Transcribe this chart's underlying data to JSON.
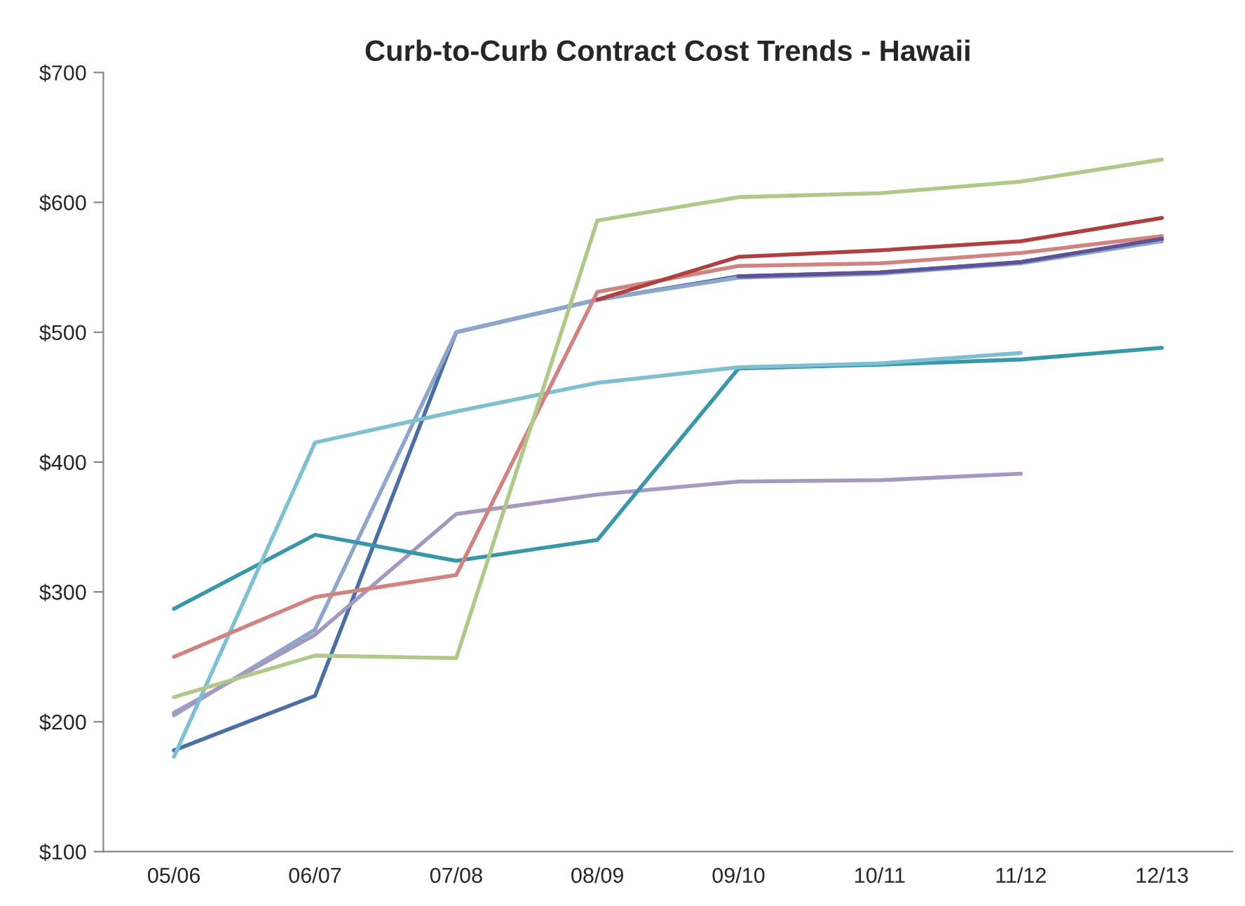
{
  "chart_data": {
    "type": "line",
    "title": "Curb-to-Curb Contract Cost Trends - Hawaii",
    "categories": [
      "05/06",
      "06/07",
      "07/08",
      "08/09",
      "09/10",
      "10/11",
      "11/12",
      "12/13"
    ],
    "series": [
      {
        "color": "#4a6fa5",
        "values": [
          178,
          220,
          500,
          525,
          543,
          546,
          554,
          571
        ]
      },
      {
        "color": "#8ea5cc",
        "values": [
          205,
          271,
          500,
          525,
          542,
          545,
          553,
          570
        ]
      },
      {
        "color": "#a699c0",
        "values": [
          207,
          267,
          360,
          375,
          385,
          386,
          391,
          null
        ]
      },
      {
        "color": "#3a97aa",
        "values": [
          287,
          344,
          324,
          340,
          472,
          475,
          479,
          488
        ]
      },
      {
        "color": "#7fbfd2",
        "values": [
          173,
          415,
          439,
          461,
          473,
          476,
          484,
          null
        ]
      },
      {
        "color": "#d0837f",
        "values": [
          250,
          296,
          313,
          531,
          551,
          553,
          561,
          574
        ]
      },
      {
        "color": "#b0c98a",
        "values": [
          219,
          251,
          249,
          586,
          604,
          607,
          616,
          633
        ]
      },
      {
        "color": "#b04040",
        "values": [
          null,
          null,
          null,
          525,
          558,
          563,
          570,
          588
        ]
      },
      {
        "color": "#5d5396",
        "values": [
          null,
          null,
          null,
          null,
          543,
          546,
          554,
          572
        ]
      }
    ],
    "ylim": [
      100,
      700
    ],
    "yticks": [
      {
        "value": 100,
        "label": "$100"
      },
      {
        "value": 200,
        "label": "$200"
      },
      {
        "value": 300,
        "label": "$300"
      },
      {
        "value": 400,
        "label": "$400"
      },
      {
        "value": 500,
        "label": "$500"
      },
      {
        "value": 600,
        "label": "$600"
      },
      {
        "value": 700,
        "label": "$700"
      }
    ],
    "grid": false,
    "legend": false,
    "marker": "none",
    "line_style": "solid"
  }
}
